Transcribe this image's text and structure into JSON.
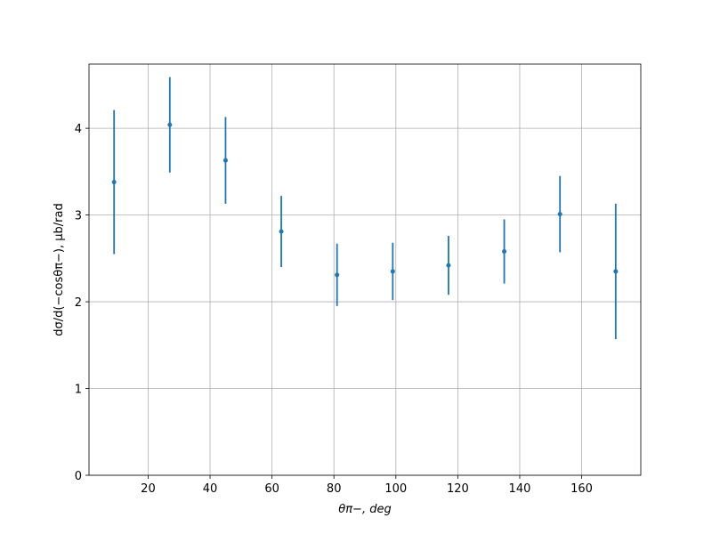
{
  "chart_data": {
    "type": "scatter",
    "x_label": "θπ−, deg",
    "y_label": "dσ/d(−cosθπ−), μb/rad",
    "x": [
      9,
      27,
      45,
      63,
      81,
      99,
      117,
      135,
      153,
      171
    ],
    "values": [
      3.38,
      4.04,
      3.63,
      2.81,
      2.31,
      2.35,
      2.42,
      2.58,
      3.01,
      2.35
    ],
    "errors": [
      0.83,
      0.55,
      0.5,
      0.41,
      0.36,
      0.33,
      0.34,
      0.37,
      0.44,
      0.78
    ],
    "color": "#1f77b4",
    "xlim": [
      0.9,
      179.1
    ],
    "ylim": [
      0,
      4.74
    ],
    "xticks": [
      20,
      40,
      60,
      80,
      100,
      120,
      140,
      160
    ],
    "yticks": [
      0,
      1,
      2,
      3,
      4
    ],
    "grid": true
  }
}
